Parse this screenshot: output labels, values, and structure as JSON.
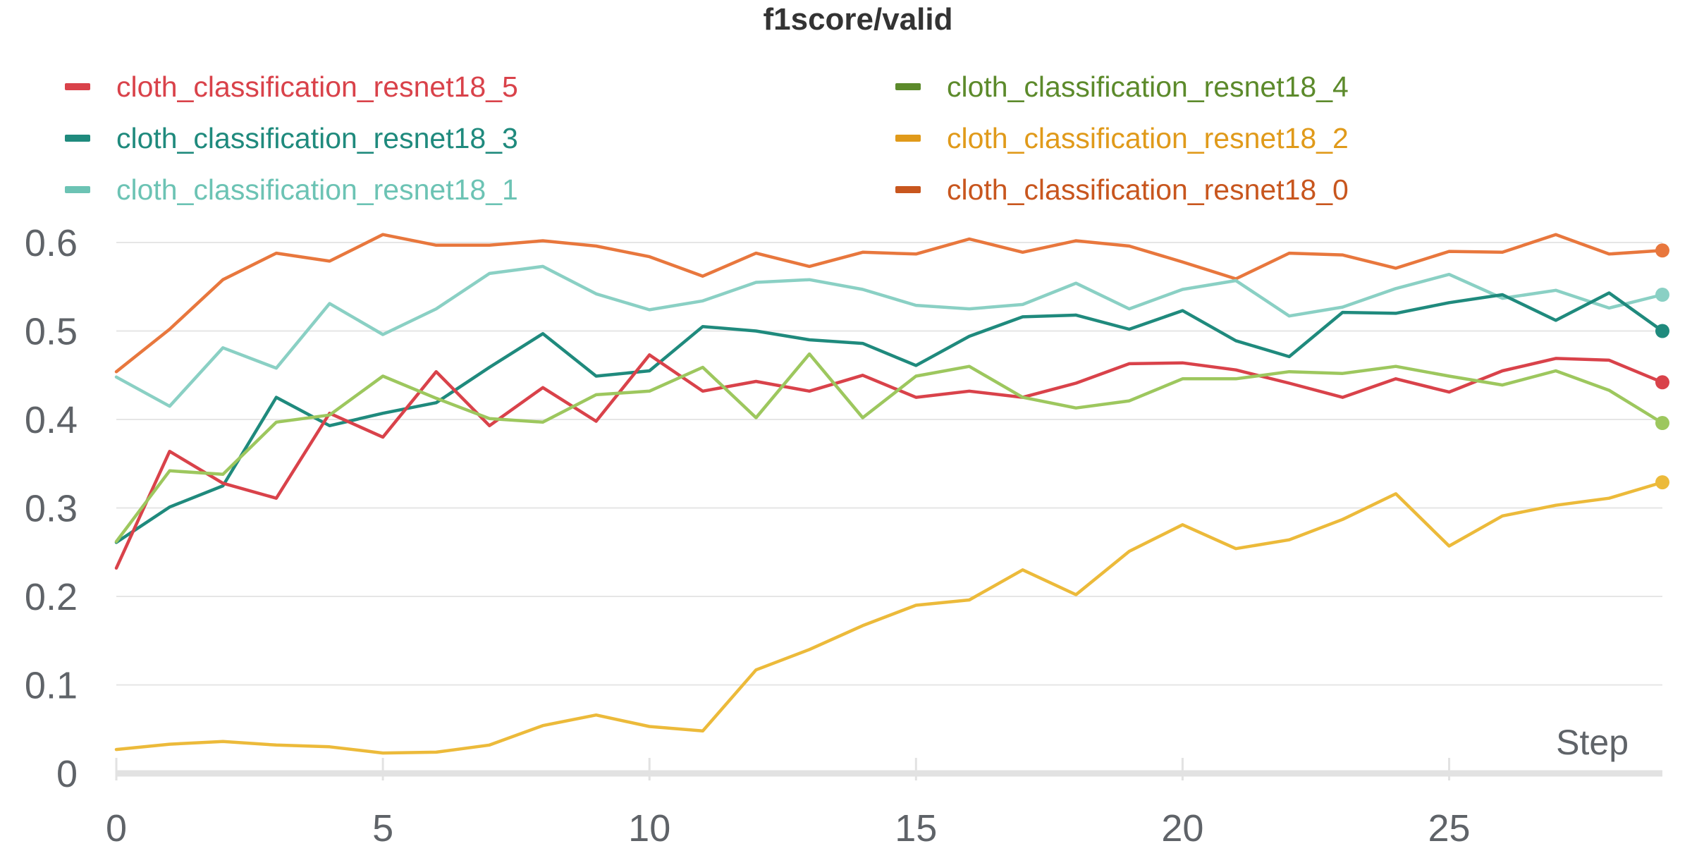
{
  "chart_data": {
    "type": "line",
    "title": "f1score/valid",
    "xlabel": "Step",
    "ylabel": "",
    "xlim": [
      0,
      29
    ],
    "ylim": [
      0,
      0.62
    ],
    "x_ticks": [
      "0",
      "5",
      "10",
      "15",
      "20",
      "25"
    ],
    "y_ticks": [
      "0",
      "0.1",
      "0.2",
      "0.3",
      "0.4",
      "0.5",
      "0.6"
    ],
    "grid": true,
    "legend_position": "top",
    "x": [
      0,
      1,
      2,
      3,
      4,
      5,
      6,
      7,
      8,
      9,
      10,
      11,
      12,
      13,
      14,
      15,
      16,
      17,
      18,
      19,
      20,
      21,
      22,
      23,
      24,
      25,
      26,
      27,
      28,
      29
    ],
    "series": [
      {
        "name": "cloth_classification_resnet18_5",
        "color": "#d9424a",
        "draw_order": 3,
        "values": [
          0.232,
          0.364,
          0.328,
          0.311,
          0.407,
          0.38,
          0.454,
          0.393,
          0.436,
          0.398,
          0.473,
          0.432,
          0.443,
          0.432,
          0.45,
          0.425,
          0.432,
          0.425,
          0.441,
          0.463,
          0.464,
          0.456,
          0.441,
          0.425,
          0.446,
          0.431,
          0.455,
          0.469,
          0.467,
          0.442
        ]
      },
      {
        "name": "cloth_classification_resnet18_4",
        "color": "#5c8a2b",
        "line_color": "#9dc75e",
        "draw_order": 4,
        "values": [
          0.262,
          0.342,
          0.338,
          0.397,
          0.405,
          0.449,
          0.424,
          0.401,
          0.397,
          0.428,
          0.432,
          0.459,
          0.402,
          0.474,
          0.402,
          0.449,
          0.46,
          0.425,
          0.413,
          0.421,
          0.446,
          0.446,
          0.454,
          0.452,
          0.46,
          0.449,
          0.439,
          0.455,
          0.433,
          0.396
        ]
      },
      {
        "name": "cloth_classification_resnet18_3",
        "color": "#1f8a7d",
        "draw_order": 2,
        "values": [
          0.261,
          0.301,
          0.325,
          0.425,
          0.393,
          0.407,
          0.419,
          0.459,
          0.497,
          0.449,
          0.455,
          0.505,
          0.5,
          0.49,
          0.486,
          0.461,
          0.494,
          0.516,
          0.518,
          0.502,
          0.523,
          0.489,
          0.471,
          0.521,
          0.52,
          0.532,
          0.541,
          0.512,
          0.543,
          0.5
        ]
      },
      {
        "name": "cloth_classification_resnet18_2",
        "color": "#e09a1a",
        "line_color": "#ecba3a",
        "draw_order": 5,
        "values": [
          0.027,
          0.033,
          0.036,
          0.032,
          0.03,
          0.023,
          0.024,
          0.032,
          0.054,
          0.066,
          0.053,
          0.048,
          0.117,
          0.14,
          0.167,
          0.19,
          0.196,
          0.23,
          0.202,
          0.251,
          0.281,
          0.254,
          0.264,
          0.287,
          0.316,
          0.257,
          0.291,
          0.303,
          0.311,
          0.329
        ]
      },
      {
        "name": "cloth_classification_resnet18_1",
        "color": "#6cc3b4",
        "line_color": "#8ad0c4",
        "draw_order": 1,
        "values": [
          0.448,
          0.415,
          0.481,
          0.458,
          0.531,
          0.496,
          0.525,
          0.565,
          0.573,
          0.542,
          0.524,
          0.534,
          0.555,
          0.558,
          0.547,
          0.529,
          0.525,
          0.53,
          0.554,
          0.525,
          0.547,
          0.557,
          0.517,
          0.527,
          0.548,
          0.564,
          0.537,
          0.546,
          0.526,
          0.541
        ]
      },
      {
        "name": "cloth_classification_resnet18_0",
        "color": "#c8561e",
        "line_color": "#e8773d",
        "draw_order": 0,
        "values": [
          0.454,
          0.502,
          0.558,
          0.588,
          0.579,
          0.609,
          0.597,
          0.597,
          0.602,
          0.596,
          0.584,
          0.562,
          0.588,
          0.573,
          0.589,
          0.587,
          0.604,
          0.589,
          0.602,
          0.596,
          0.578,
          0.559,
          0.588,
          0.586,
          0.571,
          0.59,
          0.589,
          0.609,
          0.587,
          0.591
        ]
      }
    ]
  }
}
